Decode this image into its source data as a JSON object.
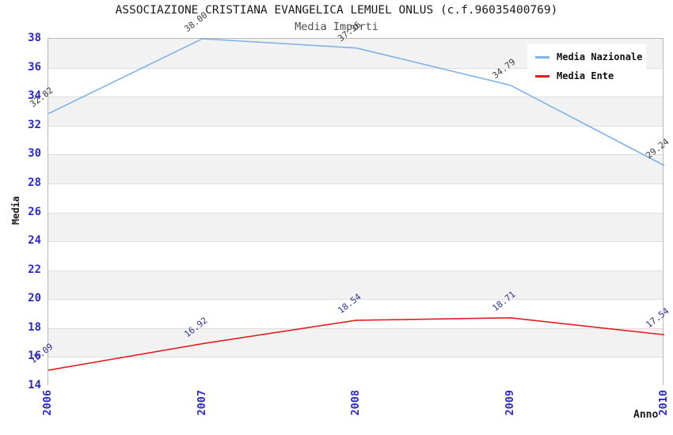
{
  "title": "ASSOCIAZIONE CRISTIANA EVANGELICA LEMUEL ONLUS (c.f.96035400769)",
  "subtitle": "Media Importi",
  "axes": {
    "x_label": "Anno",
    "y_label": "Media"
  },
  "legend": [
    {
      "label": "Media Nazionale",
      "color": "#7fb2e6"
    },
    {
      "label": "Media Ente",
      "color": "#e01f1f"
    }
  ],
  "colors": {
    "tick_label": "#2a2acc",
    "band_gray": "#f2f2f2",
    "gridline": "#dedede",
    "plot_border": "#b8b8b8"
  },
  "chart_data": {
    "type": "line",
    "title": "ASSOCIAZIONE CRISTIANA EVANGELICA LEMUEL ONLUS (c.f.96035400769)",
    "subtitle": "Media Importi",
    "xlabel": "Anno",
    "ylabel": "Media",
    "categories": [
      "2006",
      "2007",
      "2008",
      "2009",
      "2010"
    ],
    "series": [
      {
        "name": "Media Nazionale",
        "color": "#7fb2e6",
        "label_color": "#3c3c3c",
        "values": [
          32.82,
          38.0,
          37.36,
          34.79,
          29.24
        ]
      },
      {
        "name": "Media Ente",
        "color": "#e01f1f",
        "label_color": "#333399",
        "values": [
          15.09,
          16.92,
          18.54,
          18.71,
          17.54
        ]
      }
    ],
    "ylim": [
      14,
      38
    ],
    "ytick_step": 2,
    "yticks": [
      38,
      36,
      34,
      32,
      30,
      28,
      26,
      24,
      22,
      20,
      18,
      16,
      14
    ],
    "grid": "horizontal alternating bands",
    "legend_position": "top-right"
  }
}
